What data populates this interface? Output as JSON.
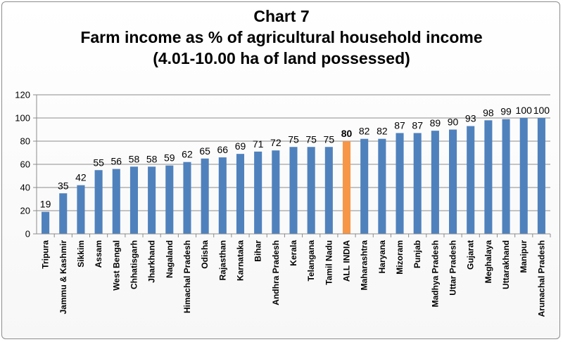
{
  "chart_data": {
    "type": "bar",
    "title_lines": [
      "Chart 7",
      "Farm income as % of agricultural household income",
      "(4.01-10.00 ha of land possessed)"
    ],
    "xlabel": "",
    "ylabel": "",
    "ylim": [
      0,
      120
    ],
    "yticks": [
      0,
      20,
      40,
      60,
      80,
      100,
      120
    ],
    "grid": true,
    "legend": "none",
    "categories": [
      "Tripura",
      "Jammu & Kashmir",
      "Sikkim",
      "Assam",
      "West Bengal",
      "Chhatisgarh",
      "Jharkhand",
      "Nagaland",
      "Himachal Pradesh",
      "Odisha",
      "Rajasthan",
      "Karnataka",
      "Bihar",
      "Andhra Pradesh",
      "Kerala",
      "Telangana",
      "Tamil Nadu",
      "ALL INDIA",
      "Maharashtra",
      "Haryana",
      "Mizoram",
      "Punjab",
      "Madhya Pradesh",
      "Uttar Pradesh",
      "Gujarat",
      "Meghalaya",
      "Uttarakhand",
      "Manipur",
      "Arunachal Pradesh"
    ],
    "values": [
      19,
      35,
      42,
      55,
      56,
      58,
      58,
      59,
      62,
      65,
      66,
      69,
      71,
      72,
      75,
      75,
      75,
      80,
      82,
      82,
      87,
      87,
      89,
      90,
      93,
      98,
      99,
      100,
      100
    ],
    "highlight_category": "ALL INDIA",
    "colors": {
      "bar": "#4f81bd",
      "highlight": "#f79646",
      "grid": "#8c8c8c"
    }
  }
}
